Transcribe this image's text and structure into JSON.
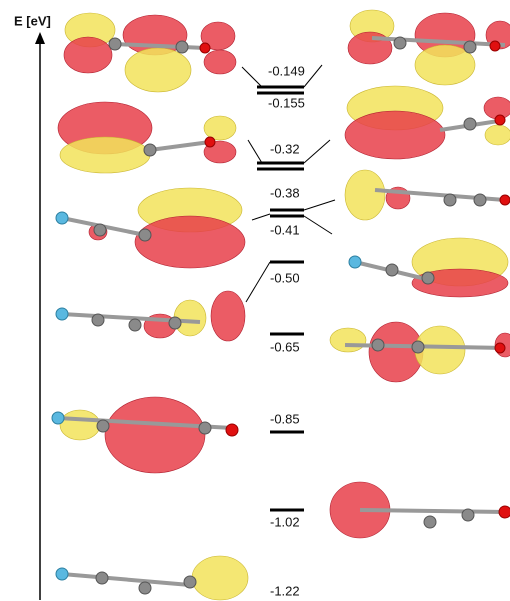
{
  "axis_label": "E [eV]",
  "levels": [
    {
      "label": "-0.149"
    },
    {
      "label": "-0.155"
    },
    {
      "label": "-0.32"
    },
    {
      "label": "-0.38"
    },
    {
      "label": "-0.41"
    },
    {
      "label": "-0.50"
    },
    {
      "label": "-0.65"
    },
    {
      "label": "-0.85"
    },
    {
      "label": "-1.02"
    },
    {
      "label": "-1.22"
    }
  ]
}
